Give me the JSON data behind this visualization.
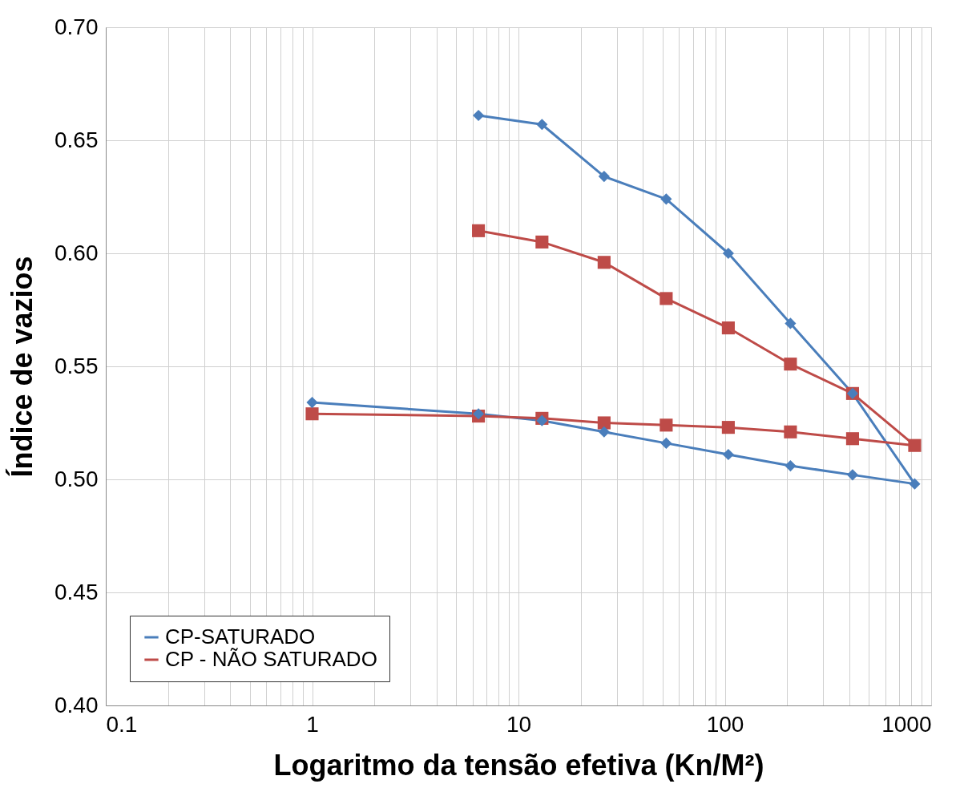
{
  "chart_data": {
    "type": "line",
    "xlabel": "Logaritmo da tensão efetiva (Kn/M²)",
    "ylabel": "Índice de vazios",
    "log": "x",
    "grid": true,
    "legend": "bottom left",
    "xlim": [
      0.1,
      1000
    ],
    "ylim": [
      0.4,
      0.7
    ],
    "xticks": [
      0.1,
      {
        "value": 0.2,
        "label": null
      },
      {
        "value": 0.3,
        "label": null
      },
      {
        "value": 0.4,
        "label": null
      },
      {
        "value": 0.5,
        "label": null
      },
      {
        "value": 0.6,
        "label": null
      },
      {
        "value": 0.7,
        "label": null
      },
      {
        "value": 0.8,
        "label": null
      },
      {
        "value": 0.9,
        "label": null
      },
      1,
      {
        "value": 2,
        "label": null
      },
      {
        "value": 3,
        "label": null
      },
      {
        "value": 4,
        "label": null
      },
      {
        "value": 5,
        "label": null
      },
      {
        "value": 6,
        "label": null
      },
      {
        "value": 7,
        "label": null
      },
      {
        "value": 8,
        "label": null
      },
      {
        "value": 9,
        "label": null
      },
      10,
      {
        "value": 20,
        "label": null
      },
      {
        "value": 30,
        "label": null
      },
      {
        "value": 40,
        "label": null
      },
      {
        "value": 50,
        "label": null
      },
      {
        "value": 60,
        "label": null
      },
      {
        "value": 70,
        "label": null
      },
      {
        "value": 80,
        "label": null
      },
      {
        "value": 90,
        "label": null
      },
      100,
      {
        "value": 200,
        "label": null
      },
      {
        "value": 300,
        "label": null
      },
      {
        "value": 400,
        "label": null
      },
      {
        "value": 500,
        "label": null
      },
      {
        "value": 600,
        "label": null
      },
      {
        "value": 700,
        "label": null
      },
      {
        "value": 800,
        "label": null
      },
      {
        "value": 900,
        "label": null
      },
      1000
    ],
    "yticks": [
      {
        "value": 0.4,
        "label": "0.40"
      },
      0.45,
      {
        "value": 0.5,
        "label": "0.50"
      },
      0.55,
      {
        "value": 0.6,
        "label": "0.60"
      },
      0.65,
      {
        "value": 0.7,
        "label": "0.70"
      }
    ],
    "series": [
      {
        "name": "CP-SATURADO",
        "color": "#4a7ebb",
        "marker": "diamond",
        "x": [
          6.4,
          13,
          26,
          52,
          104,
          208,
          416,
          832,
          416,
          208,
          104,
          52,
          26,
          13,
          6.4,
          1
        ],
        "values": [
          0.661,
          0.657,
          0.634,
          0.624,
          0.6,
          0.569,
          0.538,
          0.498,
          0.502,
          0.506,
          0.511,
          0.516,
          0.521,
          0.526,
          0.529,
          0.534
        ]
      },
      {
        "name": "CP - NÃO SATURADO",
        "color": "#be4b48",
        "marker": "square",
        "x": [
          6.4,
          13,
          26,
          52,
          104,
          208,
          416,
          832,
          416,
          208,
          104,
          52,
          26,
          13,
          6.4,
          1
        ],
        "values": [
          0.61,
          0.605,
          0.596,
          0.58,
          0.567,
          0.551,
          0.538,
          0.515,
          0.518,
          0.521,
          0.523,
          0.524,
          0.525,
          0.527,
          0.528,
          0.529
        ]
      }
    ]
  }
}
